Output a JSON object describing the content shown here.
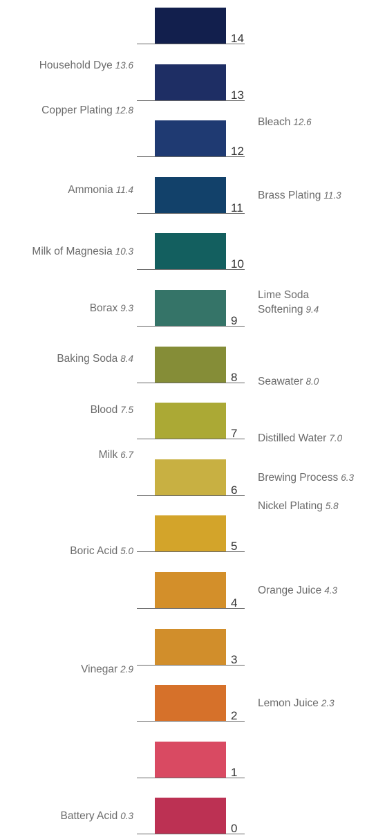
{
  "scale": [
    {
      "ph": "14",
      "color": "#121f4d"
    },
    {
      "ph": "13",
      "color": "#1e2e64"
    },
    {
      "ph": "12",
      "color": "#1f3a72"
    },
    {
      "ph": "11",
      "color": "#12416a"
    },
    {
      "ph": "10",
      "color": "#135f5f"
    },
    {
      "ph": "9",
      "color": "#357468"
    },
    {
      "ph": "8",
      "color": "#858d37"
    },
    {
      "ph": "7",
      "color": "#aba935"
    },
    {
      "ph": "6",
      "color": "#c8b042"
    },
    {
      "ph": "5",
      "color": "#d3a42a"
    },
    {
      "ph": "4",
      "color": "#d38f2a"
    },
    {
      "ph": "3",
      "color": "#d18e2b"
    },
    {
      "ph": "2",
      "color": "#d6712a"
    },
    {
      "ph": "1",
      "color": "#d94a62"
    },
    {
      "ph": "0",
      "color": "#bc3153"
    }
  ],
  "substances": [
    {
      "name": "Household Dye",
      "value": 13.6,
      "value_text": "13.6",
      "side": "left"
    },
    {
      "name": "Copper Plating",
      "value": 12.8,
      "value_text": "12.8",
      "side": "left"
    },
    {
      "name": "Bleach",
      "value": 12.6,
      "value_text": "12.6",
      "side": "right"
    },
    {
      "name": "Ammonia",
      "value": 11.4,
      "value_text": "11.4",
      "side": "left"
    },
    {
      "name": "Brass Plating",
      "value": 11.3,
      "value_text": "11.3",
      "side": "right"
    },
    {
      "name": "Milk of Magnesia",
      "value": 10.3,
      "value_text": "10.3",
      "side": "left"
    },
    {
      "name": "Borax",
      "value": 9.3,
      "value_text": "9.3",
      "side": "left"
    },
    {
      "name": "Lime Soda\nSoftening",
      "value": 9.4,
      "value_text": "9.4",
      "side": "right"
    },
    {
      "name": "Baking Soda",
      "value": 8.4,
      "value_text": "8.4",
      "side": "left"
    },
    {
      "name": "Seawater",
      "value": 8.0,
      "value_text": "8.0",
      "side": "right"
    },
    {
      "name": "Blood",
      "value": 7.5,
      "value_text": "7.5",
      "side": "left"
    },
    {
      "name": "Distilled Water",
      "value": 7.0,
      "value_text": "7.0",
      "side": "right"
    },
    {
      "name": "Milk",
      "value": 6.7,
      "value_text": "6.7",
      "side": "left"
    },
    {
      "name": "Brewing Process",
      "value": 6.3,
      "value_text": "6.3",
      "side": "right"
    },
    {
      "name": "Nickel Plating",
      "value": 5.8,
      "value_text": "5.8",
      "side": "right"
    },
    {
      "name": "Boric Acid",
      "value": 5.0,
      "value_text": "5.0",
      "side": "left"
    },
    {
      "name": "Orange Juice",
      "value": 4.3,
      "value_text": "4.3",
      "side": "right"
    },
    {
      "name": "Vinegar",
      "value": 2.9,
      "value_text": "2.9",
      "side": "left"
    },
    {
      "name": "Lemon Juice",
      "value": 2.3,
      "value_text": "2.3",
      "side": "right"
    },
    {
      "name": "Battery Acid",
      "value": 0.3,
      "value_text": "0.3",
      "side": "left"
    }
  ]
}
